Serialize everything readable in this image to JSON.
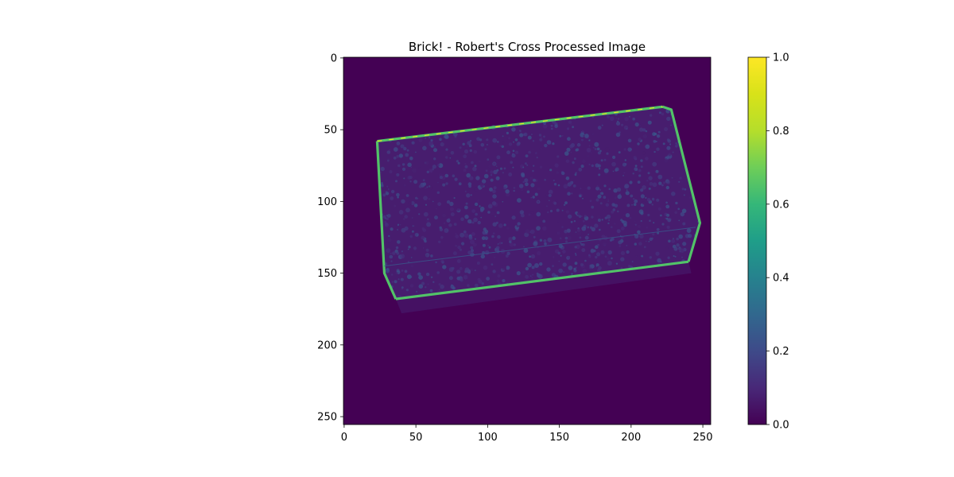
{
  "chart_data": {
    "type": "heatmap",
    "title": "Brick! - Robert's Cross Processed Image",
    "xlabel": "",
    "ylabel": "",
    "xlim": [
      0,
      255
    ],
    "ylim": [
      255,
      0
    ],
    "x_ticks": [
      0,
      50,
      100,
      150,
      200,
      250
    ],
    "y_ticks": [
      0,
      50,
      100,
      150,
      200,
      250
    ],
    "image_size": [
      256,
      256
    ],
    "colormap": "viridis",
    "background_value": 0.02,
    "texture_value": 0.12,
    "brick_outline": {
      "top_edge": [
        [
          23,
          58
        ],
        [
          222,
          34
        ]
      ],
      "right_edge": [
        [
          222,
          34
        ],
        [
          228,
          36
        ],
        [
          248,
          115
        ],
        [
          240,
          142
        ]
      ],
      "bottom_edge": [
        [
          240,
          142
        ],
        [
          36,
          168
        ]
      ],
      "left_edge": [
        [
          36,
          168
        ],
        [
          28,
          150
        ],
        [
          23,
          58
        ]
      ],
      "inner_line": [
        [
          28,
          145
        ],
        [
          245,
          118
        ]
      ],
      "edge_value": 0.65,
      "edge_peak_value": 0.95
    },
    "colorbar": {
      "range": [
        0.0,
        1.0
      ],
      "ticks": [
        "0.0",
        "0.2",
        "0.4",
        "0.6",
        "0.8",
        "1.0"
      ]
    }
  }
}
